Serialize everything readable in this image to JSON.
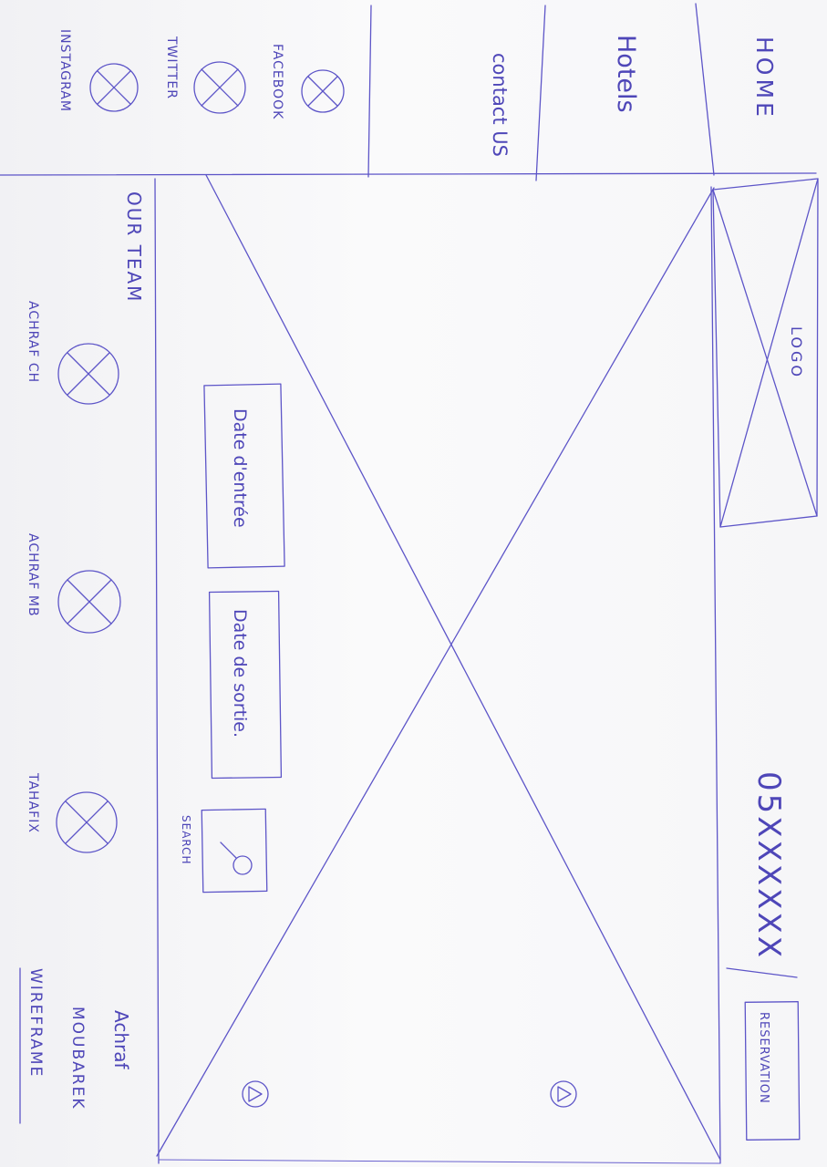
{
  "nav": {
    "home": "HOME",
    "hotels": "Hotels",
    "contact": "contact US"
  },
  "social": {
    "facebook": "FACEBOOK",
    "twitter": "TWITTER",
    "instagram": "INSTAGRAM"
  },
  "header": {
    "logo": "LOGO",
    "phone": "05XXXXXX",
    "reservation": "RESERVATION"
  },
  "search": {
    "date_in": "Date d'entrée",
    "date_out": "Date de sortie.",
    "label": "SEARCH"
  },
  "team": {
    "title": "OUR TEAM",
    "members": [
      "ACHRAF CH",
      "ACHRAF MB",
      "TAHAFIX"
    ]
  },
  "credits": {
    "author_first": "Achraf",
    "author_last": "MOUBAREK",
    "doc_type": "WIREFRAME"
  },
  "colors": {
    "ink": "#5d55c8",
    "paper": "#f6f6f8"
  }
}
